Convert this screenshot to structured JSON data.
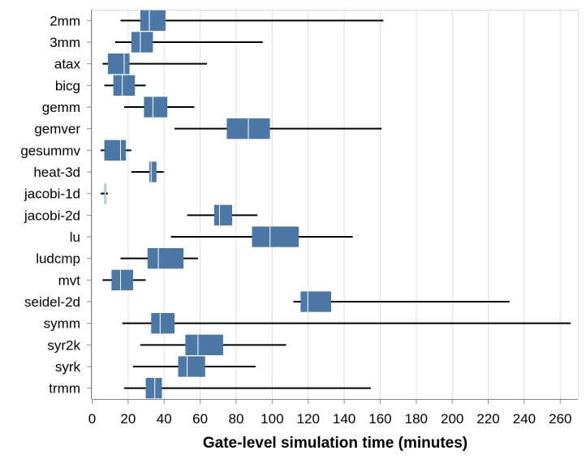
{
  "chart_data": {
    "type": "boxplot",
    "orientation": "horizontal",
    "xlabel": "Gate-level simulation time (minutes)",
    "xlim": [
      0,
      270
    ],
    "xticks": [
      0,
      20,
      40,
      60,
      80,
      100,
      120,
      140,
      160,
      180,
      200,
      220,
      240,
      260
    ],
    "grid": "vertical",
    "box_color": "#4c78a8",
    "median_color": "#ffffff",
    "whisker_color": "#000000",
    "categories": [
      "2mm",
      "3mm",
      "atax",
      "bicg",
      "gemm",
      "gemver",
      "gesummv",
      "heat-3d",
      "jacobi-1d",
      "jacobi-2d",
      "lu",
      "ludcmp",
      "mvt",
      "seidel-2d",
      "symm",
      "syr2k",
      "syrk",
      "trmm"
    ],
    "series": [
      {
        "category": "2mm",
        "min": 16,
        "q1": 27,
        "median": 32,
        "q3": 41,
        "max": 162
      },
      {
        "category": "3mm",
        "min": 13,
        "q1": 22,
        "median": 27,
        "q3": 34,
        "max": 95
      },
      {
        "category": "atax",
        "min": 6,
        "q1": 9,
        "median": 18,
        "q3": 21,
        "max": 64
      },
      {
        "category": "bicg",
        "min": 7,
        "q1": 12,
        "median": 17,
        "q3": 24,
        "max": 30
      },
      {
        "category": "gemm",
        "min": 18,
        "q1": 29,
        "median": 34,
        "q3": 42,
        "max": 57
      },
      {
        "category": "gemver",
        "min": 46,
        "q1": 75,
        "median": 87,
        "q3": 99,
        "max": 161
      },
      {
        "category": "gesummv",
        "min": 5,
        "q1": 7,
        "median": 16,
        "q3": 19,
        "max": 22
      },
      {
        "category": "heat-3d",
        "min": 22,
        "q1": 32,
        "median": 33,
        "q3": 36,
        "max": 40
      },
      {
        "category": "jacobi-1d",
        "min": 5,
        "q1": 7,
        "median": 7.5,
        "q3": 8,
        "max": 9
      },
      {
        "category": "jacobi-2d",
        "min": 53,
        "q1": 68,
        "median": 71,
        "q3": 78,
        "max": 92
      },
      {
        "category": "lu",
        "min": 44,
        "q1": 89,
        "median": 99,
        "q3": 115,
        "max": 145
      },
      {
        "category": "ludcmp",
        "min": 16,
        "q1": 31,
        "median": 37,
        "q3": 51,
        "max": 59
      },
      {
        "category": "mvt",
        "min": 6,
        "q1": 11,
        "median": 16,
        "q3": 23,
        "max": 30
      },
      {
        "category": "seidel-2d",
        "min": 112,
        "q1": 116,
        "median": 120,
        "q3": 133,
        "max": 232
      },
      {
        "category": "symm",
        "min": 17,
        "q1": 33,
        "median": 38,
        "q3": 46,
        "max": 266
      },
      {
        "category": "syr2k",
        "min": 27,
        "q1": 52,
        "median": 59,
        "q3": 73,
        "max": 108
      },
      {
        "category": "syrk",
        "min": 23,
        "q1": 48,
        "median": 53,
        "q3": 63,
        "max": 91
      },
      {
        "category": "trmm",
        "min": 18,
        "q1": 30,
        "median": 35,
        "q3": 39,
        "max": 155
      }
    ]
  }
}
